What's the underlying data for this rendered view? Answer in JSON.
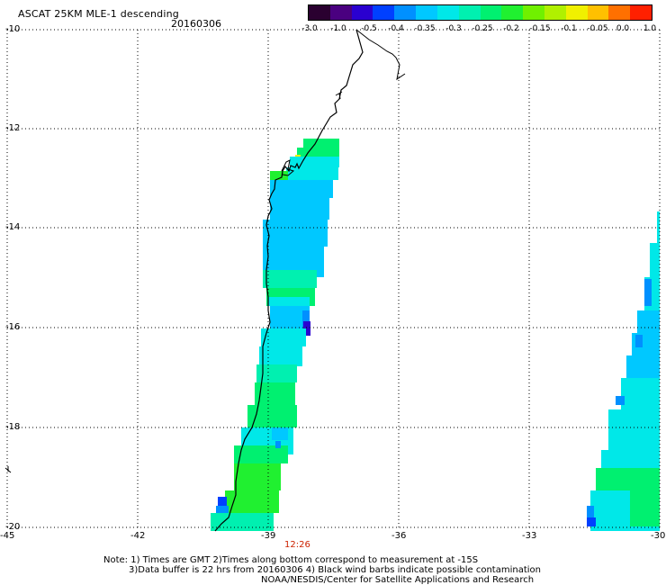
{
  "header": {
    "title": "ASCAT 25KM MLE-1 descending",
    "date": "20160306"
  },
  "colorbar": {
    "colors": [
      "#2a0030",
      "#4a0080",
      "#2a00d0",
      "#0040ff",
      "#0090ff",
      "#00c8ff",
      "#00e8e8",
      "#00f0b0",
      "#00f070",
      "#20f030",
      "#70f000",
      "#b0f000",
      "#f0f000",
      "#ffc000",
      "#ff7000",
      "#ff2000"
    ],
    "tick_labels": [
      "-3.0",
      "-1.0",
      "-0.5",
      "-0.4",
      "-0.35",
      "-0.3",
      "-0.25",
      "-0.2",
      "-0.15",
      "-0.1",
      "-0.05",
      "0.0",
      "1.0"
    ]
  },
  "axes": {
    "lat_labels": [
      "-10",
      "-12",
      "-14",
      "-16",
      "-18",
      "-20"
    ],
    "lon_labels": [
      "-45",
      "-42",
      "-39",
      "-36",
      "-33",
      "-30"
    ]
  },
  "time_marker": "12:26",
  "notes": {
    "line1": "Note: 1) Times are GMT 2)Times along bottom correspond to measurement at -15S",
    "line2": "3)Data buffer is 22 hrs from 20160306 4) Black wind barbs indicate possible contamination",
    "line3": "NOAA/NESDIS/Center for Satellite Applications and Research"
  },
  "palette": {
    "green": "#20f030",
    "lightgreen": "#00f070",
    "cyan": "#00e8e8",
    "aqua": "#00f0b0",
    "lightblue": "#00c8ff",
    "blue": "#0090ff",
    "deepblue": "#0040ff",
    "purple": "#2a00d0",
    "yellow": "#f0f000"
  }
}
